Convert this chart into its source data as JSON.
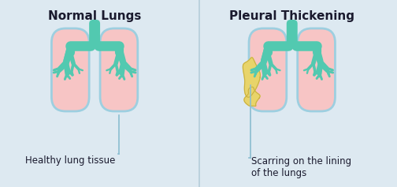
{
  "bg_color": "#dde9f1",
  "divider_color": "#b5cdd9",
  "lung_fill": "#f7c5c5",
  "lung_outline": "#9dcfe0",
  "bronchi_color": "#52c9b0",
  "scar_color": "#e8d46a",
  "scar_outline": "#c9b040",
  "text_color": "#1a1a2e",
  "annotation_color": "#8bbdd0",
  "title_left": "Normal Lungs",
  "title_right": "Pleural Thickening",
  "label_left": "Healthy lung tissue",
  "label_right": "Scarring on the lining\nof the lungs",
  "title_fontsize": 11,
  "label_fontsize": 8.5
}
